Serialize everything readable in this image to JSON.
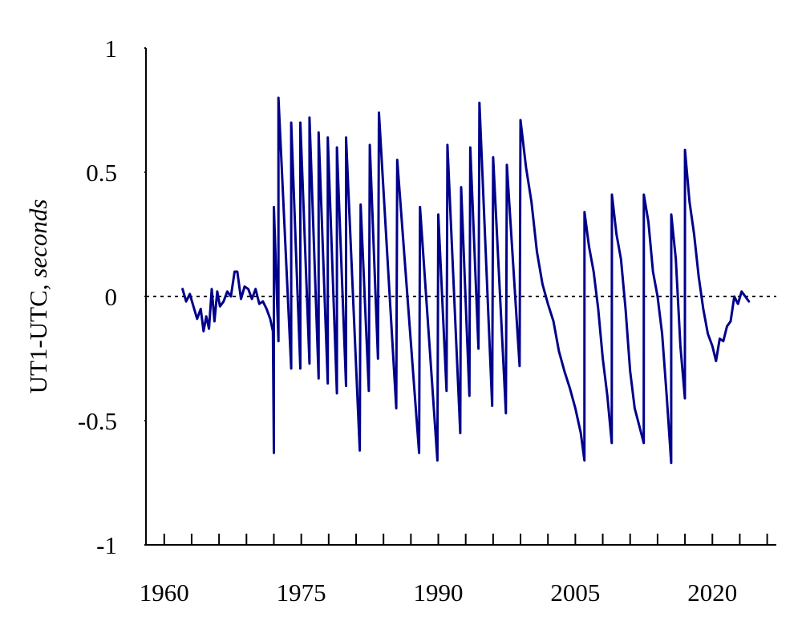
{
  "chart_data": {
    "type": "line",
    "title": "",
    "xlabel": "",
    "ylabel": {
      "plain": "UT1-UTC, ",
      "italic": "seconds"
    },
    "xlim": [
      1958,
      2027
    ],
    "ylim": [
      -1,
      1
    ],
    "x_ticks": [
      1960,
      1975,
      1990,
      2005,
      2020
    ],
    "y_ticks": [
      1,
      0.5,
      0,
      -0.5,
      -1
    ],
    "x_tick_labels": [
      "1960",
      "1975",
      "1990",
      "2005",
      "2020"
    ],
    "y_tick_labels": [
      "1",
      "0.5",
      "0",
      "-0.5",
      "-1"
    ],
    "minor_x_step": 3,
    "zero_reference_line": true,
    "grid": false,
    "legend": "none",
    "series": [
      {
        "color": "#00008B",
        "points": [
          [
            1962.0,
            0.03
          ],
          [
            1962.4,
            -0.02
          ],
          [
            1962.8,
            0.01
          ],
          [
            1963.2,
            -0.04
          ],
          [
            1963.6,
            -0.09
          ],
          [
            1964.0,
            -0.05
          ],
          [
            1964.3,
            -0.14
          ],
          [
            1964.6,
            -0.08
          ],
          [
            1964.9,
            -0.13
          ],
          [
            1965.2,
            0.03
          ],
          [
            1965.5,
            -0.1
          ],
          [
            1965.8,
            0.02
          ],
          [
            1966.1,
            -0.04
          ],
          [
            1966.5,
            -0.02
          ],
          [
            1966.9,
            0.02
          ],
          [
            1967.3,
            0.0
          ],
          [
            1967.7,
            0.1
          ],
          [
            1968.0,
            0.1
          ],
          [
            1968.4,
            -0.01
          ],
          [
            1968.8,
            0.04
          ],
          [
            1969.2,
            0.03
          ],
          [
            1969.6,
            -0.01
          ],
          [
            1970.0,
            0.03
          ],
          [
            1970.4,
            -0.03
          ],
          [
            1970.8,
            -0.02
          ],
          [
            1971.2,
            -0.05
          ],
          [
            1971.6,
            -0.09
          ],
          [
            1971.9,
            -0.14
          ],
          [
            1972.0,
            -0.63
          ],
          [
            1972.0,
            0.36
          ],
          [
            1972.5,
            -0.18
          ],
          [
            1972.5,
            0.8
          ],
          [
            1973.9,
            -0.29
          ],
          [
            1973.9,
            0.7
          ],
          [
            1974.9,
            -0.29
          ],
          [
            1974.9,
            0.7
          ],
          [
            1975.9,
            -0.27
          ],
          [
            1975.9,
            0.72
          ],
          [
            1976.9,
            -0.33
          ],
          [
            1976.9,
            0.66
          ],
          [
            1977.9,
            -0.35
          ],
          [
            1977.9,
            0.64
          ],
          [
            1978.9,
            -0.39
          ],
          [
            1978.9,
            0.6
          ],
          [
            1979.9,
            -0.36
          ],
          [
            1979.9,
            0.64
          ],
          [
            1981.4,
            -0.62
          ],
          [
            1981.5,
            0.37
          ],
          [
            1982.4,
            -0.38
          ],
          [
            1982.5,
            0.61
          ],
          [
            1983.4,
            -0.25
          ],
          [
            1983.5,
            0.74
          ],
          [
            1985.4,
            -0.45
          ],
          [
            1985.5,
            0.55
          ],
          [
            1987.9,
            -0.63
          ],
          [
            1988.0,
            0.36
          ],
          [
            1989.9,
            -0.66
          ],
          [
            1990.0,
            0.33
          ],
          [
            1990.9,
            -0.38
          ],
          [
            1991.0,
            0.61
          ],
          [
            1992.4,
            -0.55
          ],
          [
            1992.5,
            0.44
          ],
          [
            1993.4,
            -0.4
          ],
          [
            1993.5,
            0.6
          ],
          [
            1994.4,
            -0.21
          ],
          [
            1994.5,
            0.78
          ],
          [
            1995.9,
            -0.44
          ],
          [
            1996.0,
            0.56
          ],
          [
            1997.4,
            -0.47
          ],
          [
            1997.5,
            0.53
          ],
          [
            1998.9,
            -0.28
          ],
          [
            1999.0,
            0.71
          ],
          [
            1999.6,
            0.52
          ],
          [
            2000.2,
            0.38
          ],
          [
            2000.8,
            0.18
          ],
          [
            2001.4,
            0.05
          ],
          [
            2002.0,
            -0.03
          ],
          [
            2002.6,
            -0.1
          ],
          [
            2003.2,
            -0.22
          ],
          [
            2003.8,
            -0.3
          ],
          [
            2004.4,
            -0.37
          ],
          [
            2005.0,
            -0.45
          ],
          [
            2005.6,
            -0.55
          ],
          [
            2005.99,
            -0.66
          ],
          [
            2006.0,
            0.34
          ],
          [
            2006.5,
            0.2
          ],
          [
            2007.0,
            0.1
          ],
          [
            2007.5,
            -0.05
          ],
          [
            2008.0,
            -0.25
          ],
          [
            2008.5,
            -0.4
          ],
          [
            2008.99,
            -0.59
          ],
          [
            2009.0,
            0.41
          ],
          [
            2009.5,
            0.25
          ],
          [
            2010.0,
            0.15
          ],
          [
            2010.5,
            -0.05
          ],
          [
            2011.0,
            -0.3
          ],
          [
            2011.5,
            -0.45
          ],
          [
            2012.49,
            -0.59
          ],
          [
            2012.5,
            0.41
          ],
          [
            2013.0,
            0.3
          ],
          [
            2013.5,
            0.1
          ],
          [
            2014.0,
            0.0
          ],
          [
            2014.5,
            -0.15
          ],
          [
            2015.0,
            -0.4
          ],
          [
            2015.49,
            -0.67
          ],
          [
            2015.5,
            0.33
          ],
          [
            2016.0,
            0.15
          ],
          [
            2016.5,
            -0.2
          ],
          [
            2016.99,
            -0.41
          ],
          [
            2017.0,
            0.59
          ],
          [
            2017.5,
            0.38
          ],
          [
            2018.0,
            0.25
          ],
          [
            2018.5,
            0.08
          ],
          [
            2019.0,
            -0.05
          ],
          [
            2019.5,
            -0.15
          ],
          [
            2020.0,
            -0.2
          ],
          [
            2020.4,
            -0.26
          ],
          [
            2020.8,
            -0.17
          ],
          [
            2021.2,
            -0.18
          ],
          [
            2021.6,
            -0.12
          ],
          [
            2022.0,
            -0.1
          ],
          [
            2022.4,
            0.0
          ],
          [
            2022.8,
            -0.03
          ],
          [
            2023.2,
            0.02
          ],
          [
            2023.6,
            0.0
          ],
          [
            2024.0,
            -0.02
          ]
        ]
      }
    ]
  }
}
